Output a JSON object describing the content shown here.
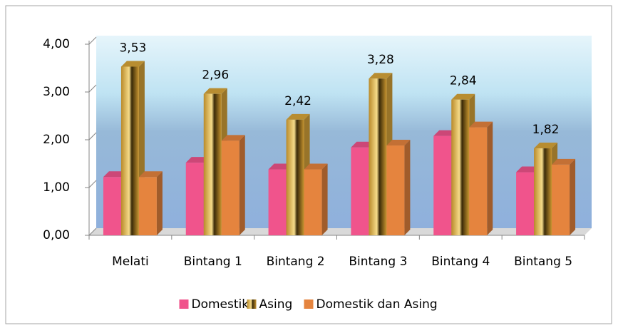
{
  "chart_data": {
    "type": "bar",
    "categories": [
      "Melati",
      "Bintang 1",
      "Bintang 2",
      "Bintang 3",
      "Bintang 4",
      "Bintang 5"
    ],
    "series": [
      {
        "name": "Domestik",
        "color": "#f0548c",
        "values": [
          1.22,
          1.52,
          1.38,
          1.84,
          2.08,
          1.32
        ]
      },
      {
        "name": "Asing",
        "color": "#d9a63a",
        "values": [
          3.53,
          2.96,
          2.42,
          3.28,
          2.84,
          1.82
        ],
        "value_labels": [
          "3,53",
          "2,96",
          "2,42",
          "3,28",
          "2,84",
          "1,82"
        ]
      },
      {
        "name": "Domestik dan Asing",
        "color": "#e5843e",
        "values": [
          1.22,
          1.98,
          1.38,
          1.88,
          2.26,
          1.48
        ]
      }
    ],
    "ylim": [
      0,
      4
    ],
    "yticks": [
      {
        "value": 0,
        "label": "0,00"
      },
      {
        "value": 1,
        "label": "1,00"
      },
      {
        "value": 2,
        "label": "2,00"
      },
      {
        "value": 3,
        "label": "3,00"
      },
      {
        "value": 4,
        "label": "4,00"
      }
    ],
    "legend": "bottom"
  }
}
